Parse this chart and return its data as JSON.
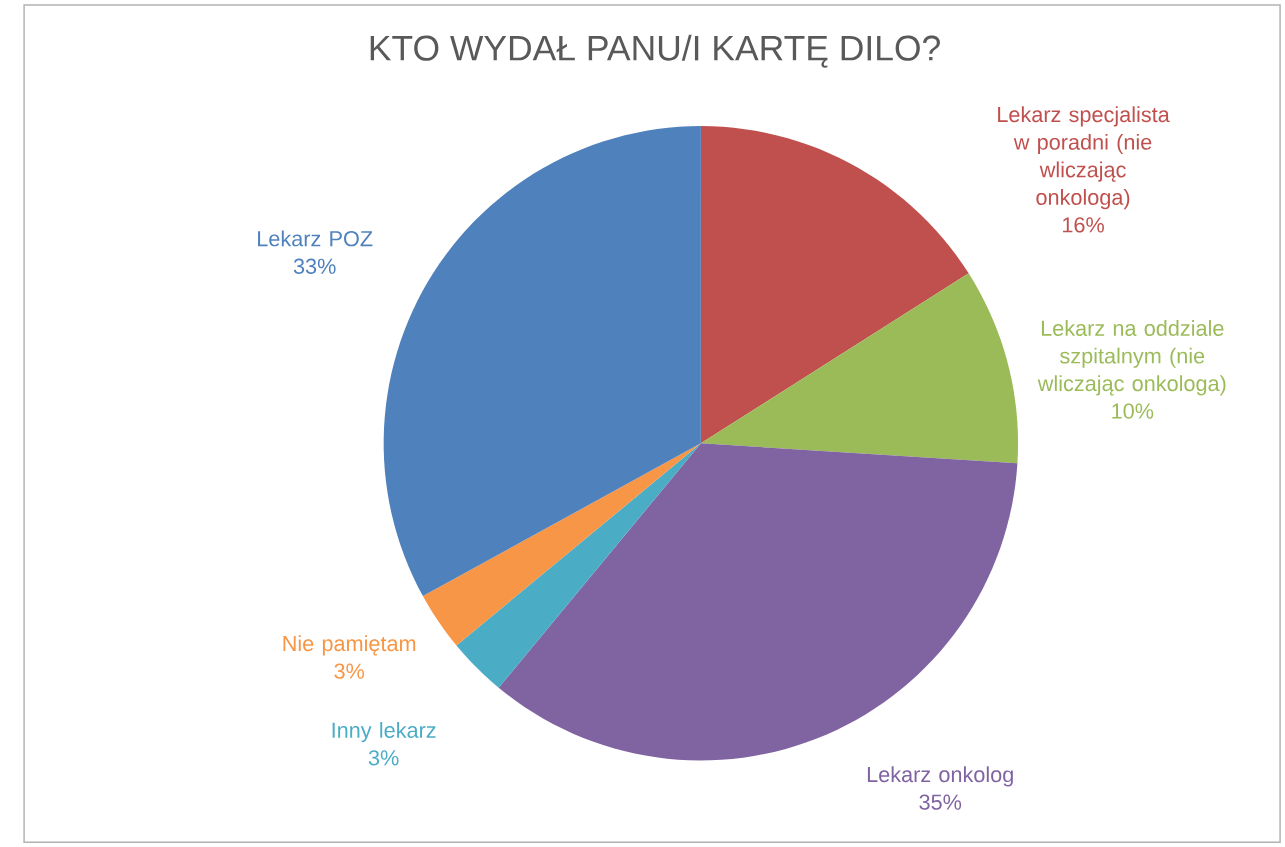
{
  "chart_data": {
    "type": "pie",
    "title": "KTO WYDAŁ PANU/I KARTĘ DILO?",
    "categories": [
      "Lekarz specjalista w poradni (nie wliczając onkologa)",
      "Lekarz na oddziale szpitalnym (nie wliczając onkologa)",
      "Lekarz onkolog",
      "Inny lekarz",
      "Nie pamiętam",
      "Lekarz POZ"
    ],
    "values": [
      16,
      10,
      35,
      3,
      3,
      33
    ],
    "value_labels": [
      "16%",
      "10%",
      "35%",
      "3%",
      "3%",
      "33%"
    ],
    "colors": [
      "#c0504d",
      "#9bbb59",
      "#8064a2",
      "#4bacc6",
      "#f79646",
      "#4f81bd"
    ]
  }
}
